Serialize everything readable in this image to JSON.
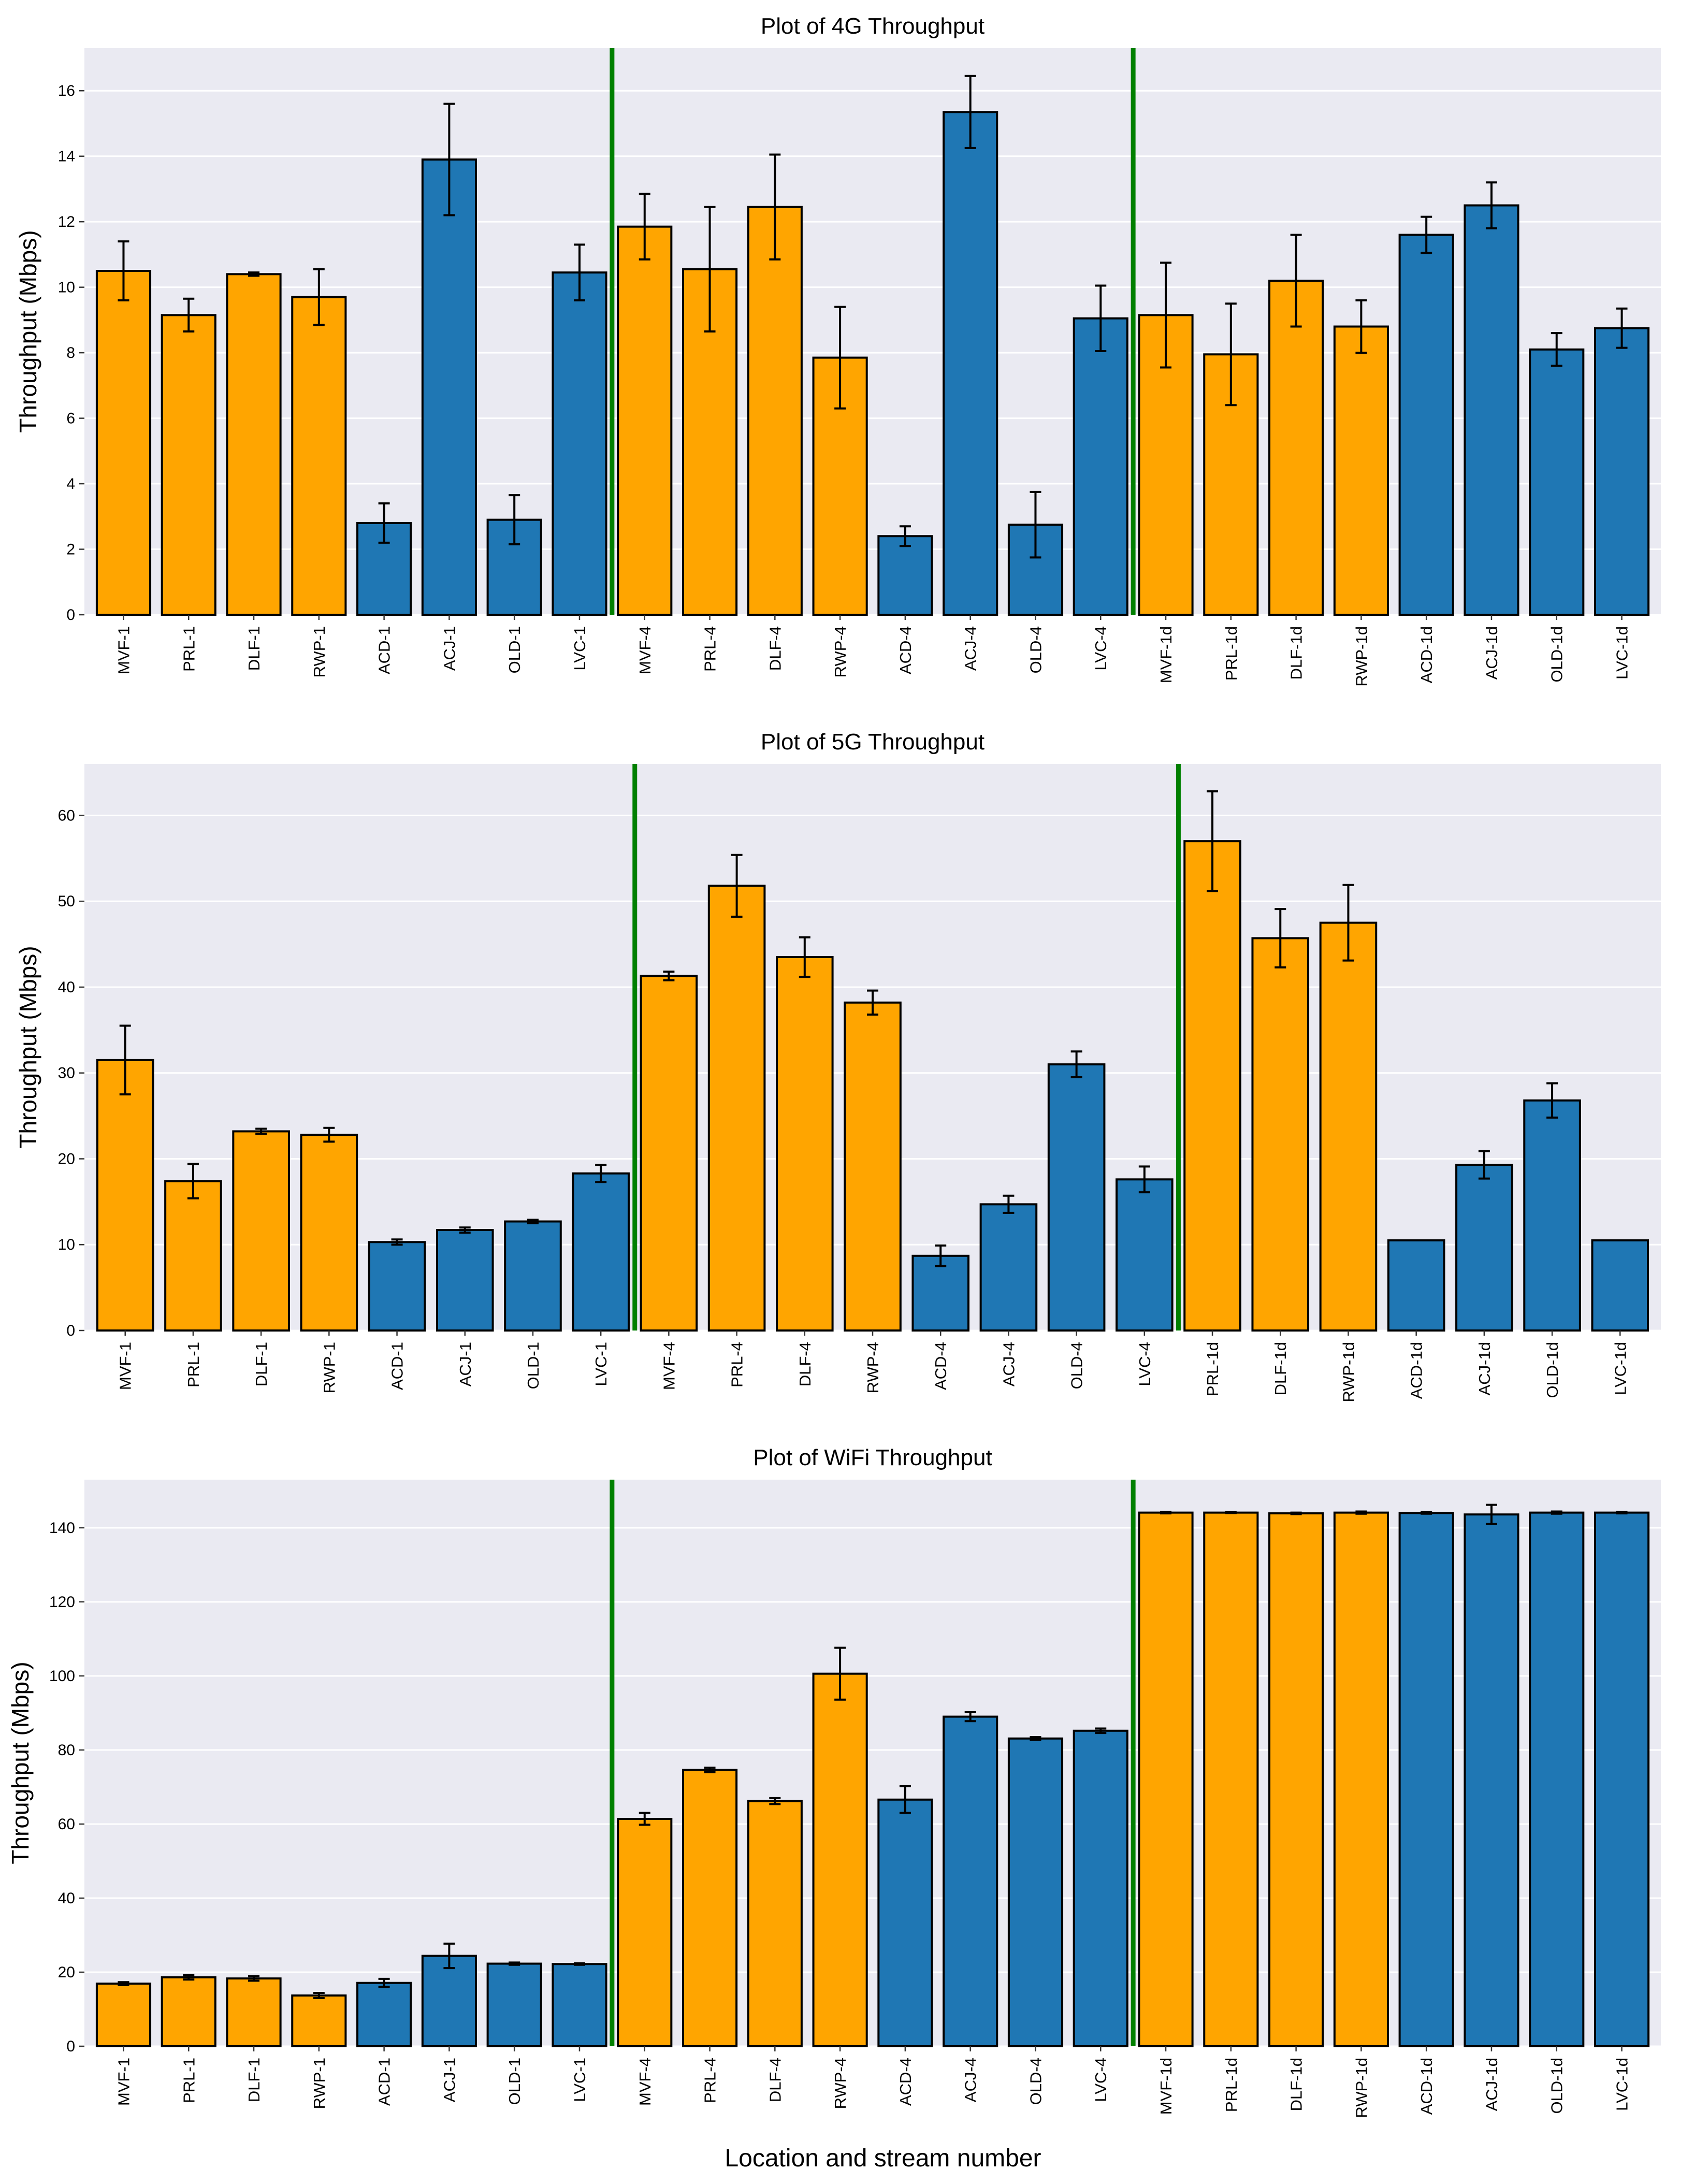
{
  "colors": {
    "orange": "#FFA500",
    "blue": "#1F77B4",
    "separator": "#008000",
    "background": "#EAEAF2"
  },
  "xlabel": "Location and stream number",
  "chart_data": [
    {
      "type": "bar",
      "title": "Plot of 4G Throughput",
      "ylabel": "Throughput (Mbps)",
      "ylim": [
        0,
        17.3
      ],
      "yticks": [
        0,
        2,
        4,
        6,
        8,
        10,
        12,
        14,
        16
      ],
      "categories": [
        "MVF-1",
        "PRL-1",
        "DLF-1",
        "RWP-1",
        "ACD-1",
        "ACJ-1",
        "OLD-1",
        "LVC-1",
        "MVF-4",
        "PRL-4",
        "DLF-4",
        "RWP-4",
        "ACD-4",
        "ACJ-4",
        "OLD-4",
        "LVC-4",
        "MVF-1d",
        "PRL-1d",
        "DLF-1d",
        "RWP-1d",
        "ACD-1d",
        "ACJ-1d",
        "OLD-1d",
        "LVC-1d"
      ],
      "values": [
        10.5,
        9.15,
        10.4,
        9.7,
        2.8,
        13.9,
        2.9,
        10.45,
        11.85,
        10.55,
        12.45,
        7.85,
        2.4,
        15.35,
        2.75,
        9.05,
        9.15,
        7.95,
        10.2,
        8.8,
        11.6,
        12.5,
        8.1,
        8.75
      ],
      "errors": [
        0.9,
        0.5,
        0.05,
        0.85,
        0.6,
        1.7,
        0.75,
        0.85,
        1.0,
        1.9,
        1.6,
        1.55,
        0.3,
        1.1,
        1.0,
        1.0,
        1.6,
        1.55,
        1.4,
        0.8,
        0.55,
        0.7,
        0.5,
        0.6
      ],
      "colors": [
        "orange",
        "orange",
        "orange",
        "orange",
        "blue",
        "blue",
        "blue",
        "blue",
        "orange",
        "orange",
        "orange",
        "orange",
        "blue",
        "blue",
        "blue",
        "blue",
        "orange",
        "orange",
        "orange",
        "orange",
        "blue",
        "blue",
        "blue",
        "blue"
      ],
      "separators_after_index": [
        7,
        15
      ]
    },
    {
      "type": "bar",
      "title": "Plot of 5G Throughput",
      "ylabel": "Throughput (Mbps)",
      "ylim": [
        0,
        66
      ],
      "yticks": [
        0,
        10,
        20,
        30,
        40,
        50,
        60
      ],
      "categories": [
        "MVF-1",
        "PRL-1",
        "DLF-1",
        "RWP-1",
        "ACD-1",
        "ACJ-1",
        "OLD-1",
        "LVC-1",
        "MVF-4",
        "PRL-4",
        "DLF-4",
        "RWP-4",
        "ACD-4",
        "ACJ-4",
        "OLD-4",
        "LVC-4",
        "PRL-1d",
        "DLF-1d",
        "RWP-1d",
        "ACD-1d",
        "ACJ-1d",
        "OLD-1d",
        "LVC-1d"
      ],
      "values": [
        31.5,
        17.4,
        23.2,
        22.8,
        10.3,
        11.7,
        12.7,
        18.3,
        41.3,
        51.8,
        43.5,
        38.2,
        8.7,
        14.7,
        31.0,
        17.6,
        57.0,
        45.7,
        47.5,
        10.5,
        19.3,
        26.8,
        10.5
      ],
      "errors": [
        4.0,
        2.0,
        0.3,
        0.8,
        0.3,
        0.3,
        0.2,
        1.0,
        0.5,
        3.6,
        2.3,
        1.4,
        1.2,
        1.0,
        1.5,
        1.5,
        5.8,
        3.4,
        4.4,
        0.0,
        1.6,
        2.0,
        0.0
      ],
      "colors": [
        "orange",
        "orange",
        "orange",
        "orange",
        "blue",
        "blue",
        "blue",
        "blue",
        "orange",
        "orange",
        "orange",
        "orange",
        "blue",
        "blue",
        "blue",
        "blue",
        "orange",
        "orange",
        "orange",
        "blue",
        "blue",
        "blue",
        "blue"
      ],
      "separators_after_index": [
        7,
        15
      ]
    },
    {
      "type": "bar",
      "title": "Plot of WiFi Throughput",
      "ylabel": "Throughput (Mbps)",
      "ylim": [
        0,
        153
      ],
      "yticks": [
        0,
        20,
        40,
        60,
        80,
        100,
        120,
        140
      ],
      "categories": [
        "MVF-1",
        "PRL-1",
        "DLF-1",
        "RWP-1",
        "ACD-1",
        "ACJ-1",
        "OLD-1",
        "LVC-1",
        "MVF-4",
        "PRL-4",
        "DLF-4",
        "RWP-4",
        "ACD-4",
        "ACJ-4",
        "OLD-4",
        "LVC-4",
        "MVF-1d",
        "PRL-1d",
        "DLF-1d",
        "RWP-1d",
        "ACD-1d",
        "ACJ-1d",
        "OLD-1d",
        "LVC-1d"
      ],
      "values": [
        16.9,
        18.6,
        18.3,
        13.7,
        17.1,
        24.4,
        22.3,
        22.2,
        61.4,
        74.6,
        66.2,
        100.6,
        66.6,
        89.0,
        83.1,
        85.2,
        144.1,
        144.1,
        143.9,
        144.1,
        144.0,
        143.6,
        144.1,
        144.1
      ],
      "errors": [
        0.4,
        0.6,
        0.6,
        0.7,
        1.1,
        3.3,
        0.3,
        0.2,
        1.6,
        0.6,
        0.8,
        7.0,
        3.6,
        1.2,
        0.4,
        0.6,
        0.2,
        0.1,
        0.2,
        0.3,
        0.2,
        2.6,
        0.3,
        0.2
      ],
      "colors": [
        "orange",
        "orange",
        "orange",
        "orange",
        "blue",
        "blue",
        "blue",
        "blue",
        "orange",
        "orange",
        "orange",
        "orange",
        "blue",
        "blue",
        "blue",
        "blue",
        "orange",
        "orange",
        "orange",
        "orange",
        "blue",
        "blue",
        "blue",
        "blue"
      ],
      "separators_after_index": [
        7,
        15
      ]
    }
  ]
}
